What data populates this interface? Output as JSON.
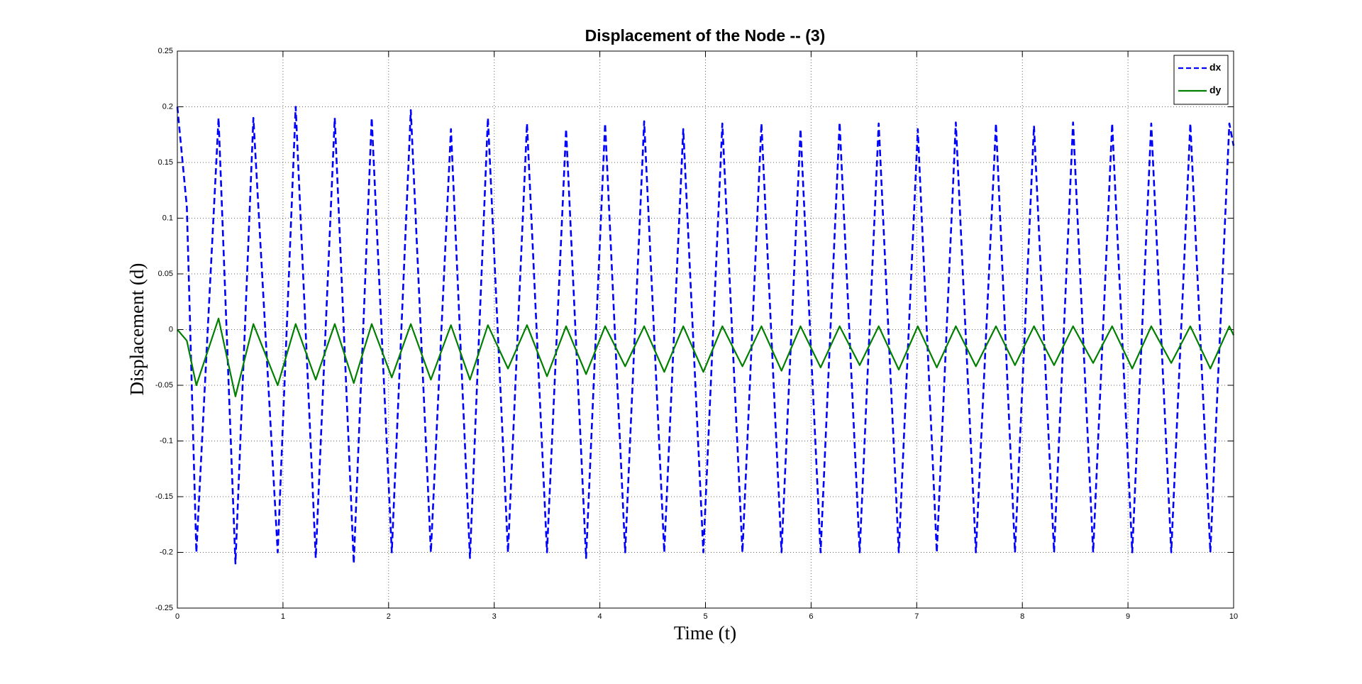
{
  "chart_data": {
    "type": "line",
    "title": "Displacement of the Node -- (3)",
    "x_label": "Time (t)",
    "y_label": "Displacement (d)",
    "x": [
      0,
      0.09,
      0.18,
      0.39,
      0.55,
      0.72,
      0.95,
      1.12,
      1.31,
      1.49,
      1.67,
      1.84,
      2.03,
      2.21,
      2.4,
      2.59,
      2.77,
      2.94,
      3.13,
      3.31,
      3.5,
      3.68,
      3.87,
      4.05,
      4.24,
      4.42,
      4.61,
      4.79,
      4.98,
      5.16,
      5.35,
      5.53,
      5.72,
      5.9,
      6.09,
      6.27,
      6.46,
      6.64,
      6.83,
      7.01,
      7.19,
      7.37,
      7.56,
      7.75,
      7.93,
      8.11,
      8.3,
      8.48,
      8.67,
      8.85,
      9.04,
      9.22,
      9.41,
      9.59,
      9.78,
      9.96,
      10
    ],
    "series": [
      {
        "name": "dx",
        "color": "#0000ff",
        "dashed": true,
        "values": [
          0.2,
          0.11,
          -0.2,
          0.19,
          -0.21,
          0.19,
          -0.2,
          0.2,
          -0.205,
          0.19,
          -0.21,
          0.19,
          -0.2,
          0.197,
          -0.2,
          0.18,
          -0.205,
          0.19,
          -0.2,
          0.185,
          -0.2,
          0.18,
          -0.205,
          0.185,
          -0.2,
          0.187,
          -0.2,
          0.18,
          -0.2,
          0.185,
          -0.2,
          0.185,
          -0.2,
          0.18,
          -0.2,
          0.186,
          -0.2,
          0.185,
          -0.2,
          0.18,
          -0.2,
          0.186,
          -0.2,
          0.185,
          -0.2,
          0.183,
          -0.2,
          0.186,
          -0.2,
          0.185,
          -0.2,
          0.185,
          -0.2,
          0.185,
          -0.2,
          0.185,
          0.165
        ]
      },
      {
        "name": "dy",
        "color": "#007f00",
        "dashed": false,
        "values": [
          0,
          -0.01,
          -0.05,
          0.01,
          -0.06,
          0.005,
          -0.05,
          0.005,
          -0.045,
          0.005,
          -0.048,
          0.005,
          -0.043,
          0.005,
          -0.045,
          0.004,
          -0.045,
          0.004,
          -0.035,
          0.004,
          -0.042,
          0.003,
          -0.04,
          0.003,
          -0.033,
          0.003,
          -0.038,
          0.003,
          -0.038,
          0.003,
          -0.033,
          0.003,
          -0.037,
          0.003,
          -0.034,
          0.003,
          -0.032,
          0.003,
          -0.036,
          0.003,
          -0.034,
          0.003,
          -0.033,
          0.003,
          -0.032,
          0.003,
          -0.032,
          0.003,
          -0.03,
          0.003,
          -0.035,
          0.003,
          -0.03,
          0.003,
          -0.035,
          0.003,
          -0.005
        ]
      }
    ],
    "xlim": [
      0,
      10
    ],
    "xticks": [
      0,
      1,
      2,
      3,
      4,
      5,
      6,
      7,
      8,
      9,
      10
    ],
    "ylim": [
      -0.25,
      0.25
    ],
    "yticks": [
      -0.25,
      -0.2,
      -0.15,
      -0.1,
      -0.05,
      0,
      0.05,
      0.1,
      0.15,
      0.2,
      0.25
    ],
    "grid": true,
    "legend": "upper right"
  }
}
